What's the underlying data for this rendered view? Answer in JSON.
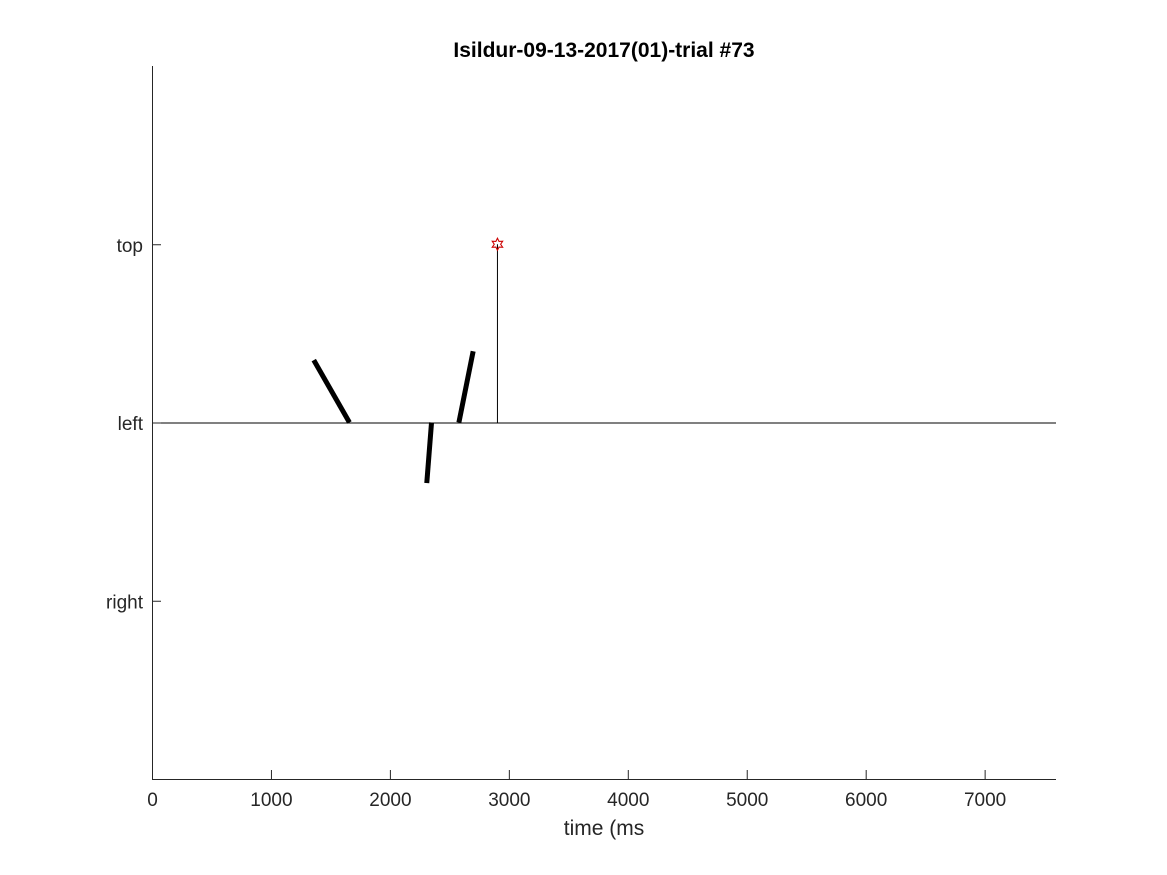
{
  "chart_data": {
    "type": "line",
    "title": "Isildur-09-13-2017(01)-trial #73",
    "xlabel": "time (ms",
    "ylabel": "",
    "xlim": [
      0,
      7600
    ],
    "ylim": [
      -2,
      2
    ],
    "x_ticks": [
      0,
      1000,
      2000,
      3000,
      4000,
      5000,
      6000,
      7000
    ],
    "y_ticks": [
      {
        "value": 1,
        "label": "top"
      },
      {
        "value": 0,
        "label": "left"
      },
      {
        "value": -1,
        "label": "right"
      }
    ],
    "grid": false,
    "baseline": {
      "y": 0,
      "x_start": 0,
      "x_end": 7600
    },
    "segments": [
      {
        "x": [
          1360,
          1660
        ],
        "y": [
          0.35,
          0.0
        ]
      },
      {
        "x": [
          2310,
          2350
        ],
        "y": [
          -0.34,
          0.0
        ]
      },
      {
        "x": [
          2580,
          2700
        ],
        "y": [
          0.0,
          0.4
        ]
      }
    ],
    "event": {
      "x": 2900,
      "y": 1.0,
      "marker": "hexagram",
      "marker_color": "#cc0000"
    }
  }
}
